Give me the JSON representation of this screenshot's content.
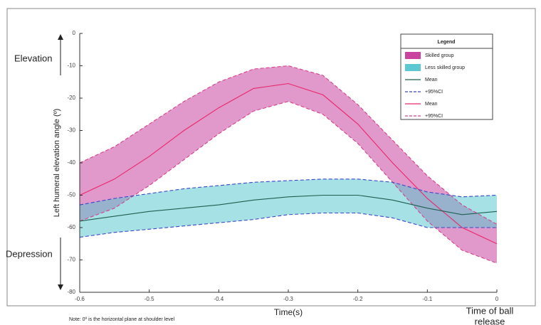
{
  "chart_data": {
    "type": "band",
    "xlabel": "Time(s)",
    "ylabel": "Left humeral elevation angle (º)",
    "annotations": {
      "top": "Elevation",
      "bottom": "Depression",
      "end": [
        "Time of ball",
        "release"
      ],
      "note": "Note: 0º is the horizontal plane at shoulder level"
    },
    "legend_title": "Legend",
    "x": [
      -0.6,
      -0.55,
      -0.5,
      -0.45,
      -0.4,
      -0.35,
      -0.3,
      -0.25,
      -0.2,
      -0.15,
      -0.1,
      -0.05,
      0
    ],
    "xlim": [
      -0.6,
      0
    ],
    "xticks": [
      -0.6,
      -0.5,
      -0.4,
      -0.3,
      -0.2,
      -0.1,
      0
    ],
    "ylim": [
      -80,
      0
    ],
    "yticks": [
      0,
      -10,
      -20,
      -30,
      -40,
      -50,
      -60,
      -70,
      -80
    ],
    "groups": [
      {
        "name": "Skilled group",
        "color": "#c8449f",
        "mean": {
          "name": "Mean",
          "color": "#e8286a",
          "values": [
            -50,
            -45,
            -38,
            -30,
            -23,
            -17,
            -15.5,
            -19,
            -28,
            -40,
            -51,
            -60,
            -65
          ]
        },
        "ci": {
          "name": "+95%CI",
          "color": "#d8408a",
          "upper": [
            -40,
            -35,
            -28,
            -21,
            -15,
            -11,
            -10,
            -13,
            -22,
            -33,
            -44,
            -53,
            -59
          ],
          "lower": [
            -58,
            -54,
            -47,
            -39,
            -31,
            -24,
            -21,
            -25,
            -34,
            -46,
            -58,
            -67,
            -71
          ]
        }
      },
      {
        "name": "Less skilled group",
        "color": "#5cc9d2",
        "mean": {
          "name": "Mean",
          "color": "#1f5f4f",
          "values": [
            -58,
            -56.5,
            -55,
            -54,
            -53,
            -51.5,
            -50.5,
            -50,
            -50,
            -51.5,
            -54,
            -56,
            -55
          ]
        },
        "ci": {
          "name": "+95%CI",
          "color": "#3a46c8",
          "upper": [
            -53,
            -51,
            -49.5,
            -48,
            -47,
            -46,
            -45.5,
            -45,
            -45,
            -46,
            -49,
            -50.5,
            -50
          ],
          "lower": [
            -63,
            -61.5,
            -60.5,
            -59.5,
            -58.5,
            -57.5,
            -56,
            -55.5,
            -55.5,
            -57,
            -60,
            -60,
            -60
          ]
        }
      }
    ]
  }
}
